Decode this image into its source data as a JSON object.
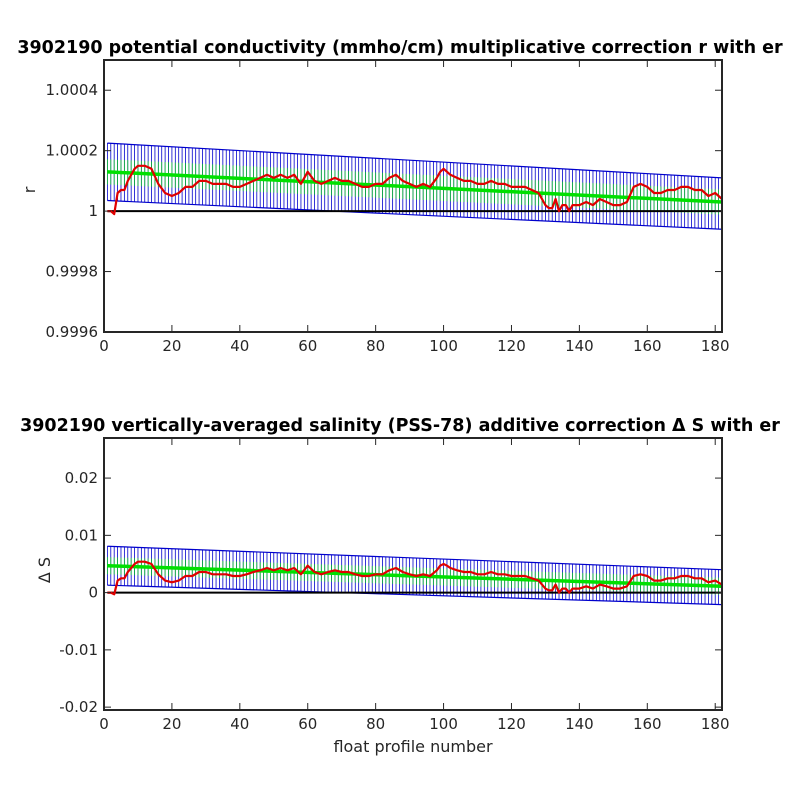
{
  "chart_data": [
    {
      "type": "line",
      "title": "3902190 potential conductivity (mmho/cm) multiplicative correction r with er",
      "xlabel": "",
      "ylabel": "r",
      "xlim": [
        0,
        182
      ],
      "ylim": [
        0.9996,
        1.0005
      ],
      "xticks": [
        0,
        20,
        40,
        60,
        80,
        100,
        120,
        140,
        160,
        180
      ],
      "yticks": [
        1.0004,
        1.0002,
        1,
        0.9998,
        0.9996
      ],
      "ytick_labels": [
        "1.0004",
        "1.0002",
        "1",
        "0.9998",
        "0.9996"
      ],
      "grid": false,
      "series": [
        {
          "role": "measured",
          "color": "#e00000",
          "x": [
            1,
            2,
            3,
            4,
            5,
            6,
            7,
            8,
            9,
            10,
            12,
            14,
            16,
            18,
            20,
            22,
            24,
            26,
            28,
            30,
            32,
            34,
            36,
            38,
            40,
            42,
            44,
            46,
            48,
            50,
            52,
            54,
            56,
            58,
            60,
            62,
            64,
            66,
            68,
            70,
            72,
            74,
            76,
            78,
            80,
            82,
            84,
            86,
            88,
            90,
            92,
            94,
            96,
            98,
            99,
            100,
            101,
            102,
            104,
            106,
            108,
            110,
            112,
            114,
            116,
            118,
            120,
            122,
            124,
            126,
            128,
            129,
            130,
            131,
            132,
            133,
            134,
            135,
            136,
            137,
            138,
            140,
            142,
            144,
            146,
            148,
            150,
            152,
            154,
            156,
            158,
            160,
            162,
            164,
            166,
            168,
            170,
            172,
            174,
            176,
            178,
            180,
            182
          ],
          "y": [
            1.0,
            1.0,
            0.99999,
            1.00006,
            1.00007,
            1.00007,
            1.0001,
            1.00012,
            1.00014,
            1.00015,
            1.00015,
            1.00014,
            1.00009,
            1.00006,
            1.00005,
            1.00006,
            1.00008,
            1.00008,
            1.0001,
            1.0001,
            1.00009,
            1.00009,
            1.00009,
            1.00008,
            1.00008,
            1.00009,
            1.0001,
            1.00011,
            1.00012,
            1.00011,
            1.00012,
            1.00011,
            1.00012,
            1.00009,
            1.00013,
            1.0001,
            1.00009,
            1.0001,
            1.00011,
            1.0001,
            1.0001,
            1.00009,
            1.00008,
            1.00008,
            1.00009,
            1.00009,
            1.00011,
            1.00012,
            1.0001,
            1.00009,
            1.00008,
            1.00009,
            1.00008,
            1.00011,
            1.00013,
            1.00014,
            1.00013,
            1.00012,
            1.00011,
            1.0001,
            1.0001,
            1.00009,
            1.00009,
            1.0001,
            1.00009,
            1.00009,
            1.00008,
            1.00008,
            1.00008,
            1.00007,
            1.00006,
            1.00004,
            1.00002,
            1.00001,
            1.00001,
            1.00004,
            1.0,
            1.00002,
            1.00002,
            1.0,
            1.00002,
            1.00002,
            1.00003,
            1.00002,
            1.00004,
            1.00003,
            1.00002,
            1.00002,
            1.00003,
            1.00008,
            1.00009,
            1.00008,
            1.00006,
            1.00006,
            1.00007,
            1.00007,
            1.00008,
            1.00008,
            1.00007,
            1.00007,
            1.00005,
            1.00006,
            1.00004
          ]
        },
        {
          "role": "fit",
          "color": "#00e000",
          "x": [
            1,
            182
          ],
          "y": [
            1.00013,
            1.00003
          ]
        },
        {
          "role": "fit_error_upper",
          "color": "#0000cc",
          "x": [
            1,
            182
          ],
          "y": [
            1.000225,
            1.00011
          ]
        },
        {
          "role": "fit_error_lower",
          "color": "#0000cc",
          "x": [
            1,
            182
          ],
          "y": [
            1.000035,
            0.99994
          ]
        },
        {
          "role": "reference",
          "color": "#000000",
          "x": [
            1,
            182
          ],
          "y": [
            1.0,
            1.0
          ]
        }
      ]
    },
    {
      "type": "line",
      "title": "3902190 vertically-averaged salinity (PSS-78) additive correction Δ S with er",
      "xlabel": "float profile number",
      "ylabel": "Δ S",
      "xlim": [
        0,
        182
      ],
      "ylim": [
        -0.0205,
        0.027
      ],
      "xticks": [
        0,
        20,
        40,
        60,
        80,
        100,
        120,
        140,
        160,
        180
      ],
      "yticks": [
        0.02,
        0.01,
        0,
        -0.01,
        -0.02
      ],
      "ytick_labels": [
        "0.02",
        "0.01",
        "0",
        "-0.01",
        "-0.02"
      ],
      "grid": false,
      "series": [
        {
          "role": "measured",
          "color": "#e00000",
          "x": [
            1,
            2,
            3,
            4,
            5,
            6,
            7,
            8,
            9,
            10,
            12,
            14,
            16,
            18,
            20,
            22,
            24,
            26,
            28,
            30,
            32,
            34,
            36,
            38,
            40,
            42,
            44,
            46,
            48,
            50,
            52,
            54,
            56,
            58,
            60,
            62,
            64,
            66,
            68,
            70,
            72,
            74,
            76,
            78,
            80,
            82,
            84,
            86,
            88,
            90,
            92,
            94,
            96,
            98,
            99,
            100,
            101,
            102,
            104,
            106,
            108,
            110,
            112,
            114,
            116,
            118,
            120,
            122,
            124,
            126,
            128,
            129,
            130,
            131,
            132,
            133,
            134,
            135,
            136,
            137,
            138,
            140,
            142,
            144,
            146,
            148,
            150,
            152,
            154,
            156,
            158,
            160,
            162,
            164,
            166,
            168,
            170,
            172,
            174,
            176,
            178,
            180,
            182
          ],
          "y": [
            0.0,
            0.0,
            -0.0003,
            0.0021,
            0.0025,
            0.0025,
            0.0036,
            0.0043,
            0.005,
            0.0054,
            0.0054,
            0.005,
            0.0032,
            0.0021,
            0.0018,
            0.0021,
            0.0029,
            0.0029,
            0.0036,
            0.0036,
            0.0032,
            0.0032,
            0.0032,
            0.0029,
            0.0029,
            0.0032,
            0.0036,
            0.0039,
            0.0043,
            0.0039,
            0.0043,
            0.0039,
            0.0043,
            0.0032,
            0.0047,
            0.0036,
            0.0032,
            0.0036,
            0.0039,
            0.0036,
            0.0036,
            0.0032,
            0.0029,
            0.0029,
            0.0032,
            0.0032,
            0.0039,
            0.0043,
            0.0036,
            0.0032,
            0.0029,
            0.0032,
            0.0029,
            0.0039,
            0.0047,
            0.005,
            0.0047,
            0.0043,
            0.0039,
            0.0036,
            0.0036,
            0.0032,
            0.0032,
            0.0036,
            0.0032,
            0.0032,
            0.0029,
            0.0029,
            0.0029,
            0.0025,
            0.0021,
            0.0014,
            0.0007,
            0.0004,
            0.0004,
            0.0014,
            0.0,
            0.0007,
            0.0007,
            0.0,
            0.0007,
            0.0007,
            0.0011,
            0.0007,
            0.0014,
            0.0011,
            0.0007,
            0.0007,
            0.0011,
            0.0029,
            0.0032,
            0.0029,
            0.0021,
            0.0021,
            0.0025,
            0.0025,
            0.0029,
            0.0029,
            0.0025,
            0.0025,
            0.0018,
            0.0021,
            0.0014
          ]
        },
        {
          "role": "fit",
          "color": "#00e000",
          "x": [
            1,
            182
          ],
          "y": [
            0.0047,
            0.0011
          ]
        },
        {
          "role": "fit_error_upper",
          "color": "#0000cc",
          "x": [
            1,
            182
          ],
          "y": [
            0.0081,
            0.004
          ]
        },
        {
          "role": "fit_error_lower",
          "color": "#0000cc",
          "x": [
            1,
            182
          ],
          "y": [
            0.0013,
            -0.0021
          ]
        },
        {
          "role": "reference",
          "color": "#000000",
          "x": [
            1,
            182
          ],
          "y": [
            0.0,
            0.0
          ]
        }
      ]
    }
  ]
}
